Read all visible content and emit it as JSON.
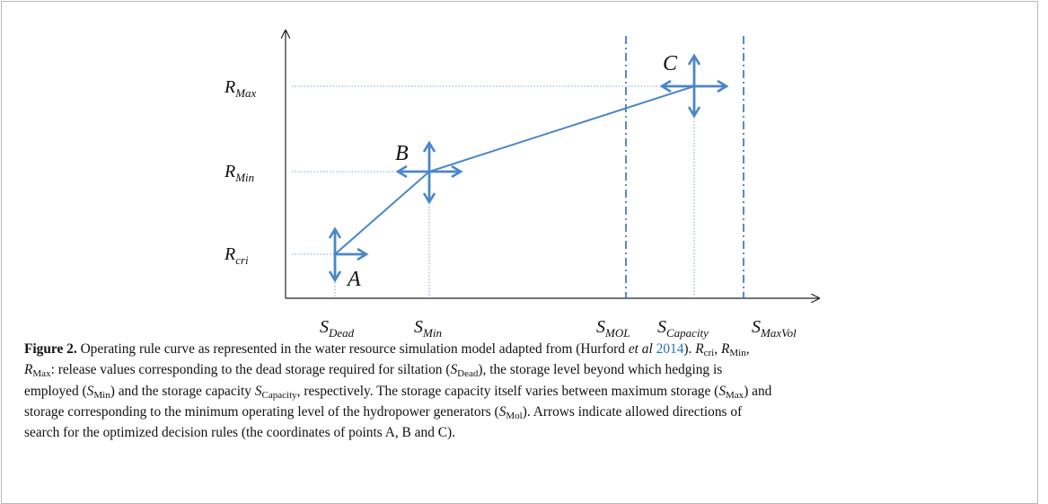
{
  "diagram": {
    "y_labels": [
      {
        "base": "R",
        "sub": "Max"
      },
      {
        "base": "R",
        "sub": "Min"
      },
      {
        "base": "R",
        "sub": "cri"
      }
    ],
    "x_labels": [
      {
        "base": "S",
        "sub": "Dead"
      },
      {
        "base": "S",
        "sub": "Min"
      },
      {
        "base": "S",
        "sub": "MOL"
      },
      {
        "base": "S",
        "sub": "Capacity"
      },
      {
        "base": "S",
        "sub": "MaxVol"
      }
    ],
    "points": [
      "A",
      "B",
      "C"
    ]
  },
  "caption": {
    "lines": [
      [
        {
          "t": "Figure 2.",
          "s": "b"
        },
        {
          "t": " Operating rule curve as represented in the water resource simulation model adapted from (Hurford "
        },
        {
          "t": "et al",
          "s": "i"
        },
        {
          "t": " "
        },
        {
          "t": "2014",
          "s": "link"
        },
        {
          "t": "). "
        },
        {
          "t": "R",
          "s": "i"
        },
        {
          "t": "cri",
          "s": "sub"
        },
        {
          "t": ", "
        },
        {
          "t": "R",
          "s": "i"
        },
        {
          "t": "Min",
          "s": "sub"
        },
        {
          "t": ","
        }
      ],
      [
        {
          "t": "R",
          "s": "i"
        },
        {
          "t": "Max",
          "s": "sub"
        },
        {
          "t": ": release values corresponding to the dead storage required for siltation ("
        },
        {
          "t": "S",
          "s": "i"
        },
        {
          "t": "Dead",
          "s": "sub"
        },
        {
          "t": "), the storage level beyond which hedging is"
        }
      ],
      [
        {
          "t": "employed ("
        },
        {
          "t": "S",
          "s": "i"
        },
        {
          "t": "Min",
          "s": "sub"
        },
        {
          "t": ") and the storage capacity "
        },
        {
          "t": "S",
          "s": "i"
        },
        {
          "t": "Capacity",
          "s": "sub"
        },
        {
          "t": ", respectively. The storage capacity itself varies between maximum storage ("
        },
        {
          "t": "S",
          "s": "i"
        },
        {
          "t": "Max",
          "s": "sub"
        },
        {
          "t": ") and"
        }
      ],
      [
        {
          "t": "storage corresponding to the minimum operating level of the hydropower generators ("
        },
        {
          "t": "S",
          "s": "i"
        },
        {
          "t": "Mol",
          "s": "sub"
        },
        {
          "t": "). Arrows indicate allowed directions of"
        }
      ],
      [
        {
          "t": "search for the optimized decision rules (the coordinates of points A, B and C)."
        }
      ]
    ]
  }
}
